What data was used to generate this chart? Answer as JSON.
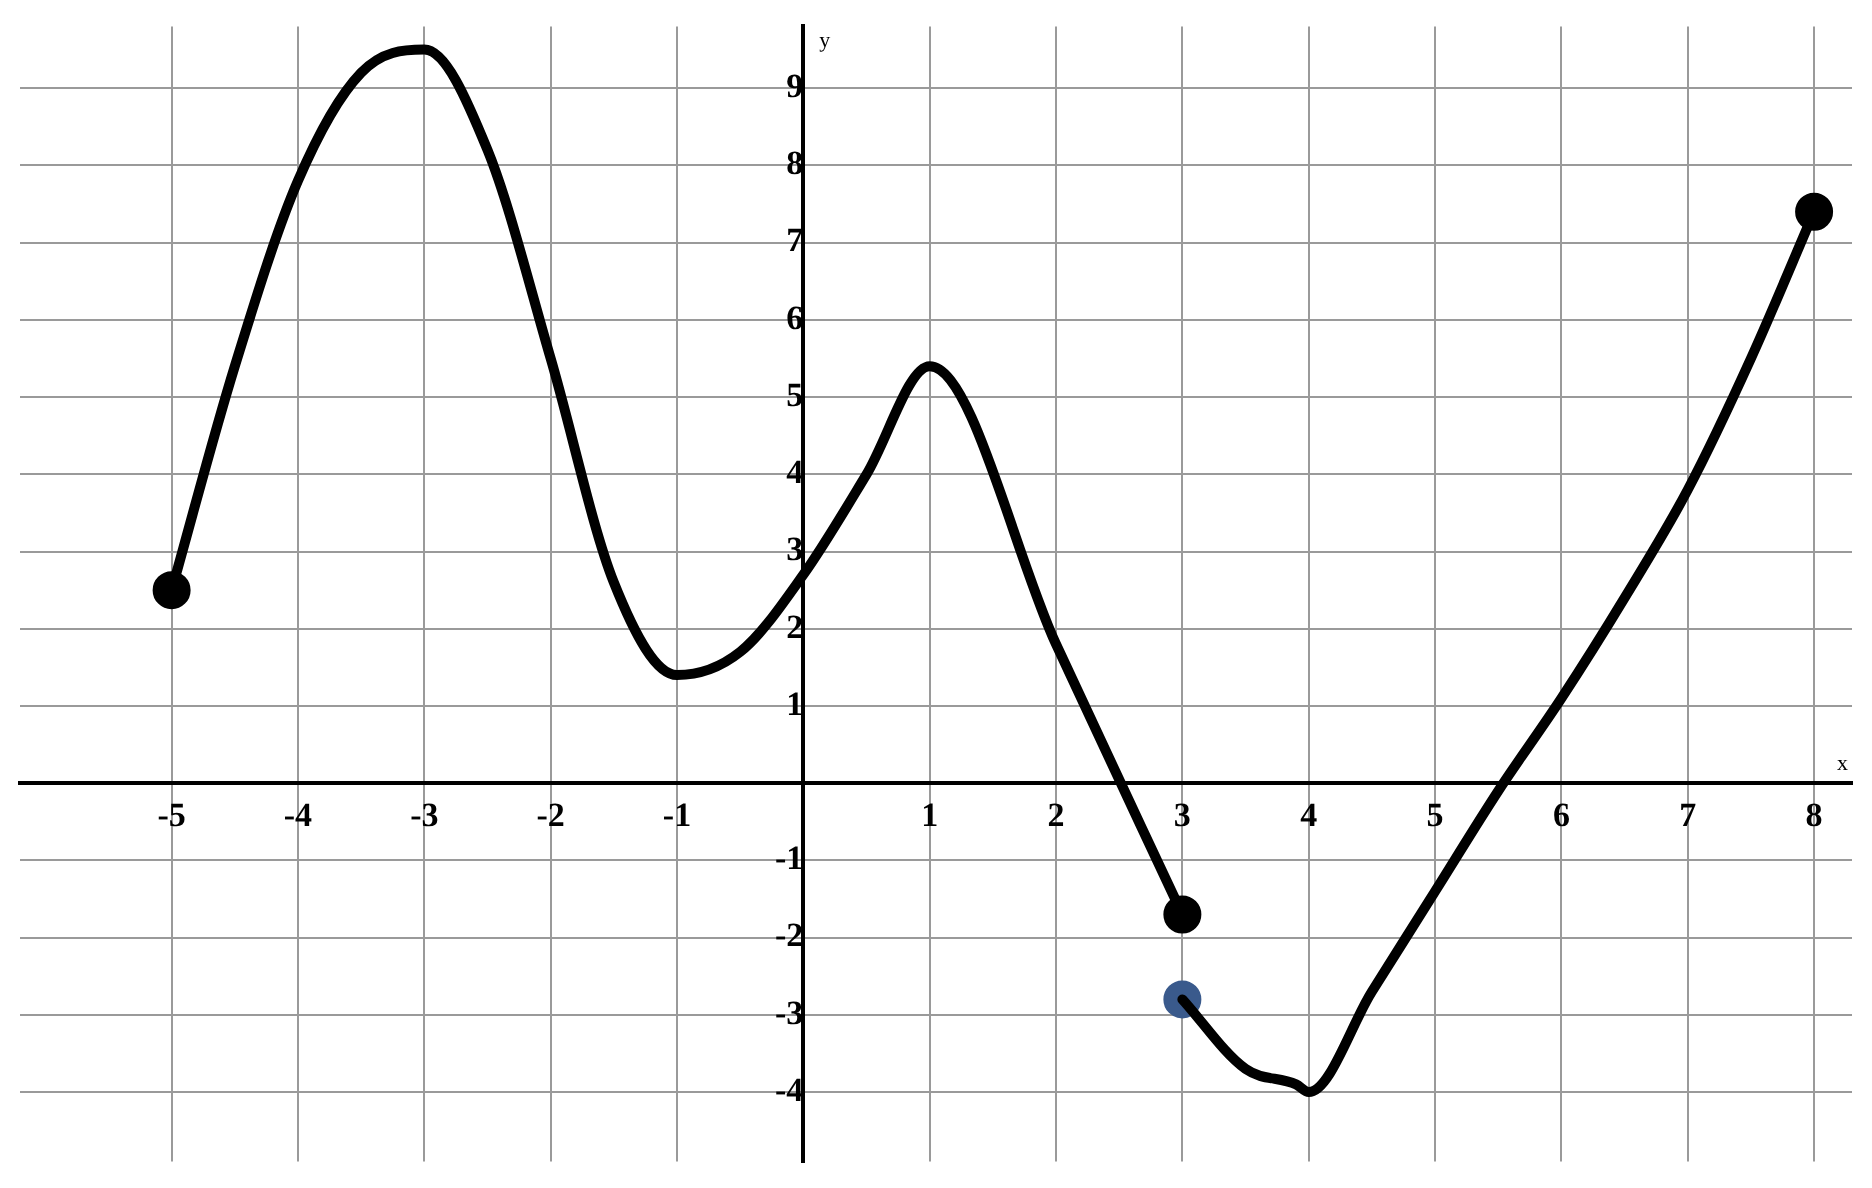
{
  "chart_data": {
    "type": "line",
    "xlabel": "x",
    "ylabel": "y",
    "xlim": [
      -6.2,
      8.3
    ],
    "ylim": [
      -4.9,
      9.8
    ],
    "xticks": [
      -5,
      -4,
      -3,
      -2,
      -1,
      {
        "value": 0,
        "label": null
      },
      1,
      2,
      3,
      4,
      5,
      6,
      7,
      8
    ],
    "yticks": [
      -4,
      -3,
      -2,
      -1,
      {
        "value": 0,
        "label": null
      },
      1,
      2,
      3,
      4,
      5,
      6,
      7,
      8,
      9
    ],
    "grid": true,
    "legend": false,
    "line_style": "solid",
    "series": [
      {
        "type": "line",
        "color": "#000000",
        "marker": "none",
        "x": [
          -5,
          -4.5,
          -4,
          -3.5,
          -3,
          -2.5,
          -2,
          -1.5,
          -1,
          -0.5,
          0,
          0.5,
          1,
          2,
          3
        ],
        "values": [
          2.5,
          5.4,
          7.8,
          9.2,
          9.5,
          8.2,
          5.5,
          2.6,
          1.4,
          1.7,
          2.7,
          4,
          5.4,
          1.8,
          -1.7
        ]
      },
      {
        "type": "line",
        "color": "#000000",
        "marker": "none",
        "x": [
          3,
          3.5,
          3.9,
          4,
          4.5,
          5,
          5.5,
          6,
          6.5,
          7,
          7.5,
          8
        ],
        "values": [
          -2.8,
          -3.7,
          -3.9,
          -4,
          -2.7,
          -1.4,
          -0.1,
          1.1,
          2.4,
          3.8,
          5.5,
          7.4
        ]
      },
      {
        "type": "scatter",
        "color": "#000000",
        "marker": "circle",
        "x": [
          -5,
          3,
          8
        ],
        "values": [
          2.5,
          -1.7,
          7.4
        ]
      },
      {
        "type": "scatter",
        "color": "#3a5a8c",
        "marker": "circle",
        "x": [
          3
        ],
        "values": [
          -2.8
        ]
      }
    ]
  }
}
